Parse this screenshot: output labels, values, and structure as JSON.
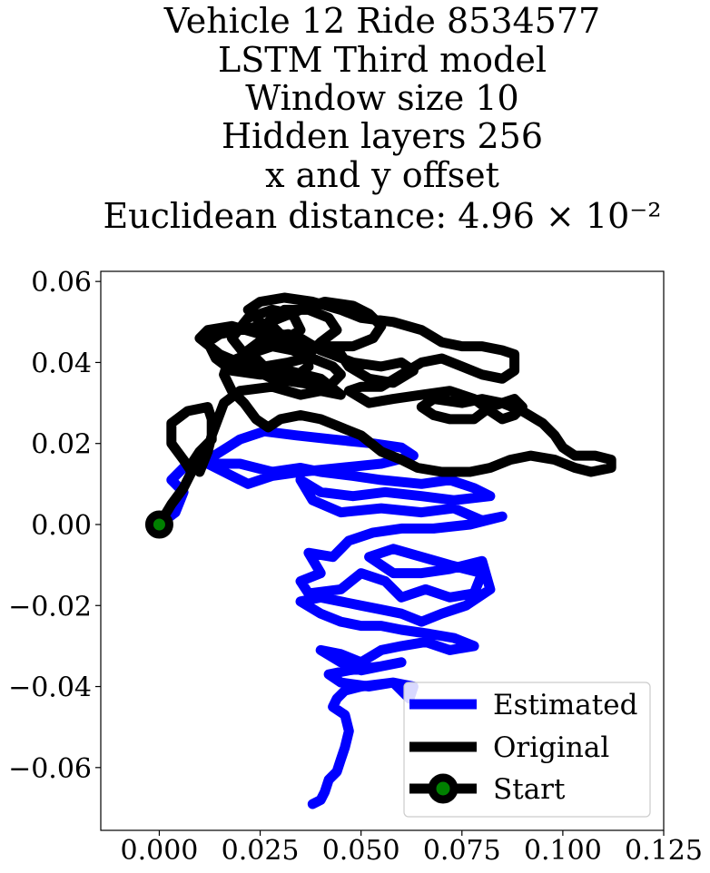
{
  "chart_data": {
    "type": "line",
    "title_lines": [
      "Vehicle 12 Ride 8534577",
      "LSTM Third model",
      "Window size 10",
      "Hidden layers 256",
      "x and y offset",
      "Euclidean distance: 4.96 × 10⁻²"
    ],
    "xlabel": "",
    "ylabel": "",
    "xlim": [
      -0.0145,
      0.125
    ],
    "ylim": [
      -0.0755,
      0.0625
    ],
    "xticks": [
      0.0,
      0.025,
      0.05,
      0.075,
      0.1,
      0.125
    ],
    "xtick_labels": [
      "0.000",
      "0.025",
      "0.050",
      "0.075",
      "0.100",
      "0.125"
    ],
    "yticks": [
      0.06,
      0.04,
      0.02,
      0.0,
      -0.02,
      -0.04,
      -0.06
    ],
    "ytick_labels": [
      "0.06",
      "0.04",
      "0.02",
      "0.00",
      "−0.02",
      "−0.04",
      "−0.06"
    ],
    "grid": false,
    "legend_position": "lower right",
    "series": [
      {
        "name": "Estimated",
        "color": "#0000ff",
        "points": [
          [
            0.0,
            0.0
          ],
          [
            0.004,
            0.003
          ],
          [
            0.006,
            0.008
          ],
          [
            0.003,
            0.011
          ],
          [
            0.006,
            0.014
          ],
          [
            0.012,
            0.016
          ],
          [
            0.02,
            0.021
          ],
          [
            0.026,
            0.023
          ],
          [
            0.034,
            0.022
          ],
          [
            0.043,
            0.021
          ],
          [
            0.053,
            0.02
          ],
          [
            0.06,
            0.019
          ],
          [
            0.063,
            0.017
          ],
          [
            0.055,
            0.015
          ],
          [
            0.045,
            0.014
          ],
          [
            0.035,
            0.013
          ],
          [
            0.028,
            0.012
          ],
          [
            0.022,
            0.01
          ],
          [
            0.016,
            0.013
          ],
          [
            0.012,
            0.015
          ],
          [
            0.02,
            0.015
          ],
          [
            0.028,
            0.013
          ],
          [
            0.035,
            0.014
          ],
          [
            0.04,
            0.013
          ],
          [
            0.048,
            0.012
          ],
          [
            0.055,
            0.011
          ],
          [
            0.065,
            0.01
          ],
          [
            0.072,
            0.011
          ],
          [
            0.078,
            0.009
          ],
          [
            0.082,
            0.007
          ],
          [
            0.073,
            0.006
          ],
          [
            0.065,
            0.007
          ],
          [
            0.056,
            0.008
          ],
          [
            0.048,
            0.007
          ],
          [
            0.04,
            0.008
          ],
          [
            0.035,
            0.011
          ],
          [
            0.038,
            0.006
          ],
          [
            0.045,
            0.003
          ],
          [
            0.055,
            0.004
          ],
          [
            0.065,
            0.003
          ],
          [
            0.073,
            0.004
          ],
          [
            0.08,
            0.001
          ],
          [
            0.085,
            0.002
          ],
          [
            0.077,
            0.0
          ],
          [
            0.068,
            -0.001
          ],
          [
            0.06,
            -0.001
          ],
          [
            0.053,
            -0.002
          ],
          [
            0.047,
            -0.004
          ],
          [
            0.043,
            -0.008
          ],
          [
            0.037,
            -0.007
          ],
          [
            0.04,
            -0.012
          ],
          [
            0.035,
            -0.014
          ],
          [
            0.037,
            -0.017
          ],
          [
            0.045,
            -0.016
          ],
          [
            0.05,
            -0.012
          ],
          [
            0.056,
            -0.014
          ],
          [
            0.06,
            -0.018
          ],
          [
            0.066,
            -0.016
          ],
          [
            0.072,
            -0.018
          ],
          [
            0.078,
            -0.017
          ],
          [
            0.08,
            -0.012
          ],
          [
            0.072,
            -0.01
          ],
          [
            0.065,
            -0.008
          ],
          [
            0.058,
            -0.006
          ],
          [
            0.052,
            -0.008
          ],
          [
            0.058,
            -0.012
          ],
          [
            0.065,
            -0.012
          ],
          [
            0.072,
            -0.011
          ],
          [
            0.08,
            -0.009
          ],
          [
            0.082,
            -0.016
          ],
          [
            0.076,
            -0.02
          ],
          [
            0.07,
            -0.022
          ],
          [
            0.065,
            -0.024
          ],
          [
            0.06,
            -0.022
          ],
          [
            0.055,
            -0.021
          ],
          [
            0.05,
            -0.02
          ],
          [
            0.045,
            -0.019
          ],
          [
            0.04,
            -0.018
          ],
          [
            0.035,
            -0.019
          ],
          [
            0.04,
            -0.022
          ],
          [
            0.045,
            -0.024
          ],
          [
            0.05,
            -0.025
          ],
          [
            0.055,
            -0.025
          ],
          [
            0.06,
            -0.026
          ],
          [
            0.067,
            -0.027
          ],
          [
            0.073,
            -0.028
          ],
          [
            0.078,
            -0.03
          ],
          [
            0.072,
            -0.031
          ],
          [
            0.066,
            -0.029
          ],
          [
            0.06,
            -0.03
          ],
          [
            0.055,
            -0.031
          ],
          [
            0.05,
            -0.034
          ],
          [
            0.045,
            -0.032
          ],
          [
            0.04,
            -0.031
          ],
          [
            0.045,
            -0.034
          ],
          [
            0.05,
            -0.036
          ],
          [
            0.055,
            -0.035
          ],
          [
            0.06,
            -0.034
          ],
          [
            0.055,
            -0.035
          ],
          [
            0.047,
            -0.036
          ],
          [
            0.042,
            -0.037
          ],
          [
            0.045,
            -0.039
          ],
          [
            0.052,
            -0.04
          ],
          [
            0.058,
            -0.039
          ],
          [
            0.063,
            -0.04
          ],
          [
            0.062,
            -0.043
          ],
          [
            0.058,
            -0.039
          ],
          [
            0.05,
            -0.04
          ],
          [
            0.046,
            -0.041
          ],
          [
            0.044,
            -0.043
          ],
          [
            0.043,
            -0.045
          ],
          [
            0.046,
            -0.047
          ],
          [
            0.047,
            -0.051
          ],
          [
            0.046,
            -0.055
          ],
          [
            0.045,
            -0.058
          ],
          [
            0.044,
            -0.061
          ],
          [
            0.042,
            -0.063
          ],
          [
            0.041,
            -0.066
          ],
          [
            0.04,
            -0.068
          ],
          [
            0.038,
            -0.069
          ]
        ]
      },
      {
        "name": "Original",
        "color": "#000000",
        "points": [
          [
            0.0,
            0.0
          ],
          [
            0.003,
            0.005
          ],
          [
            0.006,
            0.009
          ],
          [
            0.008,
            0.013
          ],
          [
            0.006,
            0.016
          ],
          [
            0.003,
            0.02
          ],
          [
            0.003,
            0.025
          ],
          [
            0.007,
            0.028
          ],
          [
            0.012,
            0.029
          ],
          [
            0.013,
            0.026
          ],
          [
            0.013,
            0.021
          ],
          [
            0.01,
            0.018
          ],
          [
            0.008,
            0.015
          ],
          [
            0.01,
            0.013
          ],
          [
            0.012,
            0.018
          ],
          [
            0.013,
            0.022
          ],
          [
            0.016,
            0.03
          ],
          [
            0.02,
            0.033
          ],
          [
            0.028,
            0.034
          ],
          [
            0.035,
            0.032
          ],
          [
            0.04,
            0.033
          ],
          [
            0.045,
            0.032
          ],
          [
            0.04,
            0.036
          ],
          [
            0.032,
            0.038
          ],
          [
            0.025,
            0.037
          ],
          [
            0.018,
            0.038
          ],
          [
            0.014,
            0.041
          ],
          [
            0.012,
            0.045
          ],
          [
            0.015,
            0.047
          ],
          [
            0.02,
            0.048
          ],
          [
            0.025,
            0.049
          ],
          [
            0.03,
            0.051
          ],
          [
            0.035,
            0.053
          ],
          [
            0.041,
            0.055
          ],
          [
            0.048,
            0.054
          ],
          [
            0.052,
            0.052
          ],
          [
            0.055,
            0.049
          ],
          [
            0.053,
            0.046
          ],
          [
            0.048,
            0.044
          ],
          [
            0.042,
            0.044
          ],
          [
            0.036,
            0.043
          ],
          [
            0.032,
            0.045
          ],
          [
            0.028,
            0.047
          ],
          [
            0.025,
            0.05
          ],
          [
            0.022,
            0.053
          ],
          [
            0.025,
            0.055
          ],
          [
            0.031,
            0.056
          ],
          [
            0.038,
            0.055
          ],
          [
            0.045,
            0.053
          ],
          [
            0.05,
            0.051
          ],
          [
            0.058,
            0.05
          ],
          [
            0.065,
            0.048
          ],
          [
            0.07,
            0.045
          ],
          [
            0.075,
            0.044
          ],
          [
            0.08,
            0.044
          ],
          [
            0.085,
            0.043
          ],
          [
            0.088,
            0.042
          ],
          [
            0.088,
            0.038
          ],
          [
            0.085,
            0.036
          ],
          [
            0.08,
            0.037
          ],
          [
            0.075,
            0.039
          ],
          [
            0.07,
            0.041
          ],
          [
            0.065,
            0.04
          ],
          [
            0.06,
            0.037
          ],
          [
            0.055,
            0.034
          ],
          [
            0.05,
            0.034
          ],
          [
            0.047,
            0.033
          ],
          [
            0.052,
            0.03
          ],
          [
            0.058,
            0.031
          ],
          [
            0.065,
            0.032
          ],
          [
            0.072,
            0.033
          ],
          [
            0.078,
            0.031
          ],
          [
            0.082,
            0.028
          ],
          [
            0.085,
            0.026
          ],
          [
            0.088,
            0.027
          ],
          [
            0.09,
            0.029
          ],
          [
            0.088,
            0.031
          ],
          [
            0.082,
            0.029
          ],
          [
            0.078,
            0.026
          ],
          [
            0.072,
            0.026
          ],
          [
            0.068,
            0.027
          ],
          [
            0.065,
            0.029
          ],
          [
            0.068,
            0.031
          ],
          [
            0.075,
            0.03
          ],
          [
            0.08,
            0.031
          ],
          [
            0.085,
            0.03
          ],
          [
            0.09,
            0.028
          ],
          [
            0.095,
            0.025
          ],
          [
            0.098,
            0.022
          ],
          [
            0.1,
            0.019
          ],
          [
            0.103,
            0.017
          ],
          [
            0.108,
            0.017
          ],
          [
            0.112,
            0.016
          ],
          [
            0.112,
            0.014
          ],
          [
            0.107,
            0.013
          ],
          [
            0.103,
            0.014
          ],
          [
            0.098,
            0.016
          ],
          [
            0.092,
            0.017
          ],
          [
            0.087,
            0.016
          ],
          [
            0.082,
            0.014
          ],
          [
            0.077,
            0.013
          ],
          [
            0.07,
            0.013
          ],
          [
            0.064,
            0.014
          ],
          [
            0.06,
            0.016
          ],
          [
            0.055,
            0.018
          ],
          [
            0.05,
            0.022
          ],
          [
            0.045,
            0.024
          ],
          [
            0.04,
            0.026
          ],
          [
            0.035,
            0.027
          ],
          [
            0.03,
            0.026
          ],
          [
            0.027,
            0.024
          ],
          [
            0.024,
            0.026
          ],
          [
            0.021,
            0.03
          ],
          [
            0.018,
            0.033
          ],
          [
            0.016,
            0.037
          ],
          [
            0.017,
            0.04
          ],
          [
            0.022,
            0.042
          ],
          [
            0.028,
            0.044
          ],
          [
            0.033,
            0.043
          ],
          [
            0.038,
            0.041
          ],
          [
            0.043,
            0.039
          ],
          [
            0.045,
            0.037
          ],
          [
            0.042,
            0.034
          ],
          [
            0.035,
            0.035
          ],
          [
            0.028,
            0.036
          ],
          [
            0.022,
            0.039
          ],
          [
            0.015,
            0.042
          ],
          [
            0.01,
            0.046
          ],
          [
            0.012,
            0.048
          ],
          [
            0.018,
            0.049
          ],
          [
            0.025,
            0.047
          ],
          [
            0.03,
            0.045
          ],
          [
            0.035,
            0.048
          ],
          [
            0.033,
            0.052
          ],
          [
            0.028,
            0.053
          ],
          [
            0.022,
            0.051
          ],
          [
            0.018,
            0.046
          ],
          [
            0.022,
            0.041
          ],
          [
            0.028,
            0.038
          ],
          [
            0.033,
            0.036
          ],
          [
            0.037,
            0.039
          ],
          [
            0.036,
            0.044
          ],
          [
            0.032,
            0.047
          ],
          [
            0.026,
            0.046
          ],
          [
            0.022,
            0.043
          ],
          [
            0.026,
            0.039
          ],
          [
            0.032,
            0.04
          ],
          [
            0.036,
            0.041
          ],
          [
            0.04,
            0.045
          ],
          [
            0.044,
            0.048
          ],
          [
            0.042,
            0.051
          ],
          [
            0.037,
            0.053
          ],
          [
            0.031,
            0.053
          ],
          [
            0.027,
            0.05
          ],
          [
            0.03,
            0.047
          ],
          [
            0.035,
            0.046
          ],
          [
            0.04,
            0.043
          ],
          [
            0.048,
            0.04
          ],
          [
            0.055,
            0.039
          ],
          [
            0.06,
            0.04
          ],
          [
            0.063,
            0.038
          ],
          [
            0.058,
            0.035
          ],
          [
            0.052,
            0.036
          ],
          [
            0.047,
            0.039
          ],
          [
            0.045,
            0.042
          ]
        ]
      }
    ],
    "start": {
      "name": "Start",
      "x": 0.0,
      "y": 0.0,
      "marker_color": "#008000",
      "edge_color": "#000000"
    }
  }
}
